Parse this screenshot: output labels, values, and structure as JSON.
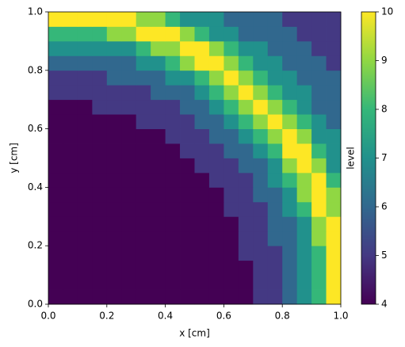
{
  "chart_data": {
    "type": "heatmap",
    "x_label": "x [cm]",
    "y_label": "y [cm]",
    "xlim": [
      0,
      1
    ],
    "ylim": [
      0,
      1
    ],
    "xticks": [
      {
        "value": 0,
        "label": "0.0"
      },
      {
        "value": 0.2,
        "label": "0.2"
      },
      {
        "value": 0.4,
        "label": "0.4"
      },
      {
        "value": 0.6,
        "label": "0.6"
      },
      {
        "value": 0.8,
        "label": "0.8"
      },
      {
        "value": 1,
        "label": "1.0"
      }
    ],
    "yticks": [
      {
        "value": 0,
        "label": "0.0"
      },
      {
        "value": 0.2,
        "label": "0.2"
      },
      {
        "value": 0.4,
        "label": "0.4"
      },
      {
        "value": 0.6,
        "label": "0.6"
      },
      {
        "value": 0.8,
        "label": "0.8"
      },
      {
        "value": 1,
        "label": "1.0"
      }
    ],
    "z": [
      [
        4,
        4,
        4,
        4,
        4,
        4,
        4,
        4,
        4,
        4,
        4,
        4,
        4,
        4,
        5,
        5,
        6,
        7,
        8,
        10
      ],
      [
        4,
        4,
        4,
        4,
        4,
        4,
        4,
        4,
        4,
        4,
        4,
        4,
        4,
        4,
        5,
        5,
        6,
        7,
        8,
        10
      ],
      [
        4,
        4,
        4,
        4,
        4,
        4,
        4,
        4,
        4,
        4,
        4,
        4,
        4,
        4,
        5,
        5,
        6,
        7,
        8,
        10
      ],
      [
        4,
        4,
        4,
        4,
        4,
        4,
        4,
        4,
        4,
        4,
        4,
        4,
        4,
        5,
        5,
        5,
        6,
        7,
        8,
        10
      ],
      [
        4,
        4,
        4,
        4,
        4,
        4,
        4,
        4,
        4,
        4,
        4,
        4,
        4,
        5,
        5,
        6,
        6,
        7,
        9,
        10
      ],
      [
        4,
        4,
        4,
        4,
        4,
        4,
        4,
        4,
        4,
        4,
        4,
        4,
        4,
        5,
        5,
        6,
        6,
        7,
        9,
        10
      ],
      [
        4,
        4,
        4,
        4,
        4,
        4,
        4,
        4,
        4,
        4,
        4,
        4,
        5,
        5,
        5,
        6,
        7,
        8,
        10,
        9
      ],
      [
        4,
        4,
        4,
        4,
        4,
        4,
        4,
        4,
        4,
        4,
        4,
        4,
        5,
        5,
        6,
        6,
        7,
        9,
        10,
        9
      ],
      [
        4,
        4,
        4,
        4,
        4,
        4,
        4,
        4,
        4,
        4,
        4,
        5,
        5,
        5,
        6,
        7,
        8,
        9,
        10,
        8
      ],
      [
        4,
        4,
        4,
        4,
        4,
        4,
        4,
        4,
        4,
        4,
        5,
        5,
        5,
        6,
        6,
        7,
        9,
        10,
        9,
        7
      ],
      [
        4,
        4,
        4,
        4,
        4,
        4,
        4,
        4,
        4,
        5,
        5,
        5,
        6,
        6,
        7,
        8,
        10,
        10,
        8,
        7
      ],
      [
        4,
        4,
        4,
        4,
        4,
        4,
        4,
        4,
        5,
        5,
        5,
        6,
        6,
        7,
        8,
        9,
        10,
        9,
        7,
        7
      ],
      [
        4,
        4,
        4,
        4,
        4,
        4,
        5,
        5,
        5,
        5,
        6,
        6,
        7,
        8,
        9,
        10,
        9,
        8,
        7,
        6
      ],
      [
        4,
        4,
        4,
        5,
        5,
        5,
        5,
        5,
        5,
        6,
        6,
        7,
        8,
        9,
        10,
        9,
        8,
        7,
        6,
        6
      ],
      [
        5,
        5,
        5,
        5,
        5,
        5,
        5,
        6,
        6,
        6,
        7,
        8,
        9,
        10,
        9,
        8,
        7,
        7,
        6,
        6
      ],
      [
        5,
        5,
        5,
        5,
        6,
        6,
        6,
        6,
        7,
        7,
        8,
        9,
        10,
        9,
        8,
        7,
        7,
        6,
        6,
        6
      ],
      [
        6,
        6,
        6,
        6,
        6,
        6,
        7,
        7,
        8,
        9,
        10,
        10,
        9,
        8,
        7,
        7,
        6,
        6,
        6,
        5
      ],
      [
        7,
        7,
        7,
        7,
        7,
        7,
        8,
        9,
        9,
        10,
        10,
        9,
        8,
        7,
        7,
        6,
        6,
        6,
        5,
        5
      ],
      [
        8,
        8,
        8,
        8,
        9,
        9,
        10,
        10,
        10,
        9,
        8,
        7,
        7,
        6,
        6,
        6,
        6,
        5,
        5,
        5
      ],
      [
        10,
        10,
        10,
        10,
        10,
        10,
        9,
        9,
        8,
        7,
        7,
        7,
        6,
        6,
        6,
        6,
        5,
        5,
        5,
        5
      ]
    ],
    "colormap": [
      "#440154",
      "#443983",
      "#31688e",
      "#21918c",
      "#35b779",
      "#90d743",
      "#fde725"
    ],
    "colorbar": {
      "label": "level",
      "lim": [
        4,
        10
      ],
      "ticks": [
        4,
        5,
        6,
        7,
        8,
        9,
        10
      ]
    }
  }
}
